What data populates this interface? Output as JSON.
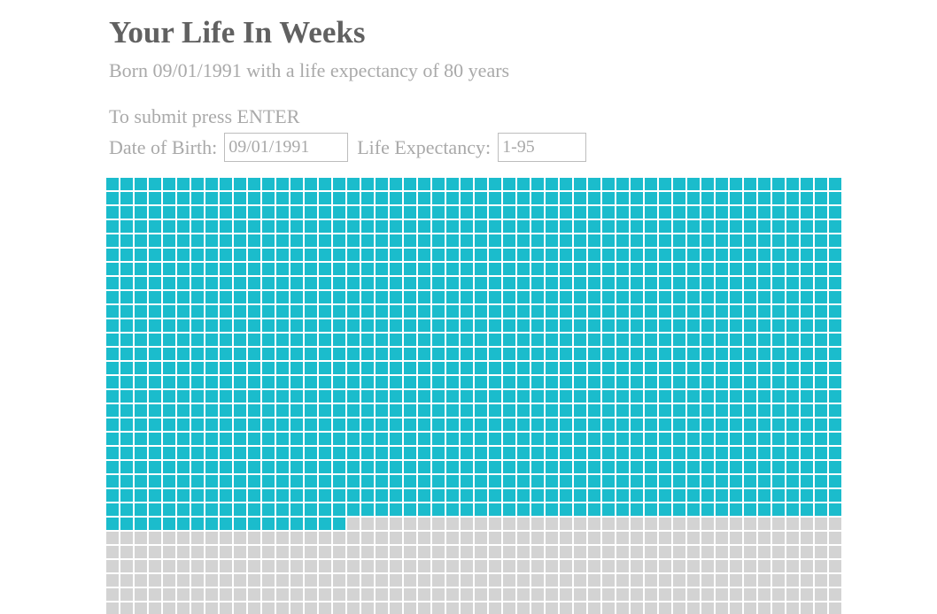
{
  "header": {
    "title": "Your Life In Weeks",
    "subtitle": "Born 09/01/1991 with a life expectancy of 80 years"
  },
  "form": {
    "instruction": "To submit press ENTER",
    "dob_label": "Date of Birth:",
    "dob_placeholder": "09/01/1991",
    "life_expectancy_label": "Life Expectancy:",
    "life_expectancy_placeholder": "1-95"
  },
  "grid": {
    "weeks_per_row": 52,
    "rows_visible": 31,
    "weeks_lived": 1265,
    "colors": {
      "lived": "#1bbccc",
      "remaining": "#d3d3d3"
    }
  }
}
